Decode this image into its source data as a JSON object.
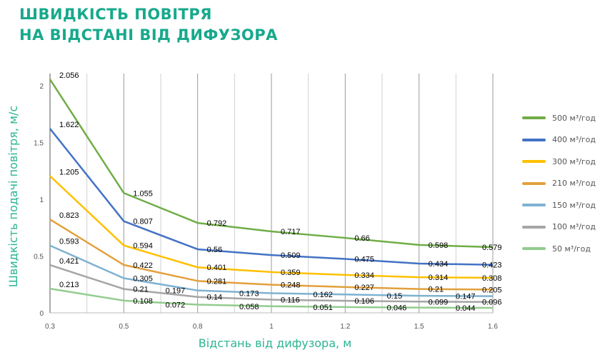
{
  "title_line1": "ШВИДКІСТЬ ПОВІТРЯ",
  "title_line2": "НА ВІДСТАНІ ВІД ДИФУЗОРА",
  "chart_data": {
    "type": "line",
    "title": "ШВИДКІСТЬ ПОВІТРЯ НА ВІДСТАНІ ВІД ДИФУЗОРА",
    "xlabel": "Відстань від дифузора, м",
    "ylabel": "Швидкість подачі повітря, м/с",
    "categories": [
      "0.3",
      "0.5",
      "0.8",
      "1",
      "1.2",
      "1.5",
      "1.6"
    ],
    "ylim": [
      0,
      2.2
    ],
    "yticks": [
      "0",
      "0.5",
      "1",
      "1.5",
      "2"
    ],
    "grid": "vertical",
    "legend_position": "right",
    "series": [
      {
        "name": "500 м³/год",
        "color": "#70ad47",
        "values": [
          2.056,
          1.055,
          0.792,
          0.717,
          0.66,
          0.598,
          0.579
        ]
      },
      {
        "name": "400 м³/год",
        "color": "#4472c4",
        "values": [
          1.622,
          0.807,
          0.56,
          0.509,
          0.475,
          0.434,
          0.423
        ]
      },
      {
        "name": "300 м³/год",
        "color": "#ffc000",
        "values": [
          1.205,
          0.594,
          0.401,
          0.359,
          0.334,
          0.314,
          0.308
        ]
      },
      {
        "name": "210 м³/год",
        "color": "#e2a03c",
        "values": [
          0.823,
          0.422,
          0.281,
          0.248,
          0.227,
          0.21,
          0.205
        ]
      },
      {
        "name": "150 м³/год",
        "color": "#7fb2d1",
        "values": [
          0.593,
          0.305,
          0.197,
          0.173,
          0.162,
          0.15,
          0.147
        ]
      },
      {
        "name": "100 м³/год",
        "color": "#a5a5a5",
        "values": [
          0.421,
          0.21,
          0.14,
          0.116,
          0.106,
          0.099,
          0.096
        ]
      },
      {
        "name": "50 м³/год",
        "color": "#93cc8f",
        "values": [
          0.213,
          0.108,
          0.072,
          0.058,
          0.051,
          0.046,
          0.044
        ]
      }
    ]
  }
}
